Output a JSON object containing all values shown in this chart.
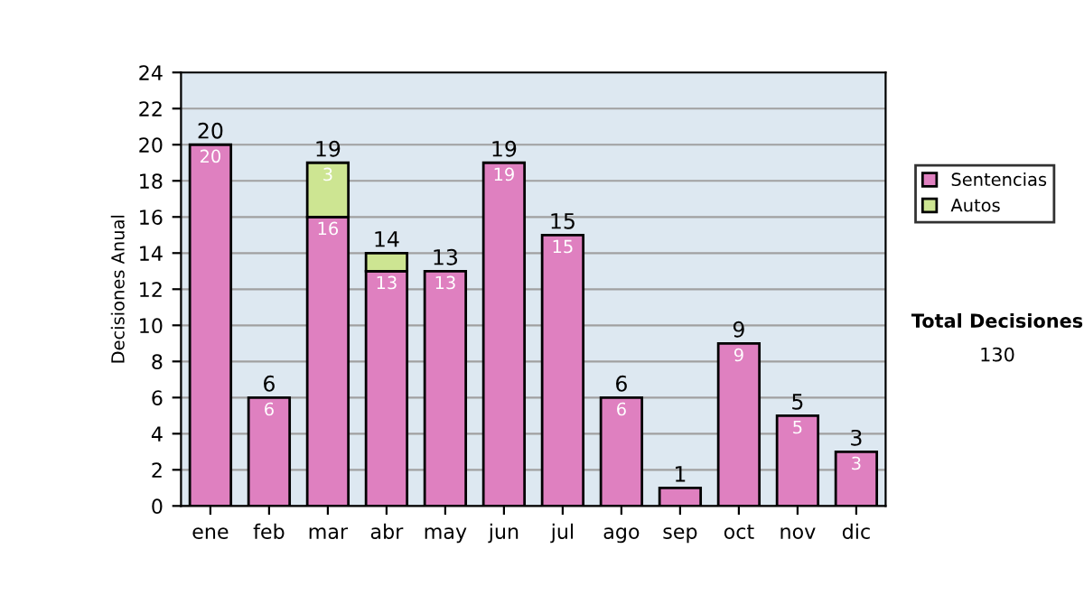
{
  "chart_data": {
    "type": "bar",
    "stacked": true,
    "ylabel": "Decisiones Anual",
    "categories": [
      "ene",
      "feb",
      "mar",
      "abr",
      "may",
      "jun",
      "jul",
      "ago",
      "sep",
      "oct",
      "nov",
      "dic"
    ],
    "series": [
      {
        "name": "Sentencias",
        "color": "#df80c0",
        "values": [
          20,
          6,
          16,
          13,
          13,
          19,
          15,
          6,
          1,
          9,
          5,
          3
        ],
        "value_labels": [
          "20",
          "6",
          "16",
          "13",
          "13",
          "19",
          "15",
          "6",
          null,
          "9",
          "5",
          "3"
        ]
      },
      {
        "name": "Autos",
        "color": "#cde592",
        "values": [
          null,
          null,
          3,
          1,
          null,
          null,
          null,
          null,
          null,
          null,
          null,
          null
        ],
        "value_labels": [
          null,
          null,
          "3",
          null,
          null,
          null,
          null,
          null,
          null,
          null,
          null,
          null
        ]
      }
    ],
    "totals": [
      "20",
      "6",
      "19",
      "14",
      "13",
      "19",
      "15",
      "6",
      "1",
      "9",
      "5",
      "3"
    ],
    "ylim": [
      0,
      24
    ],
    "yticks": [
      0,
      2,
      4,
      6,
      8,
      10,
      12,
      14,
      16,
      18,
      20,
      22,
      24
    ],
    "grid": "y",
    "legend": "right",
    "annotations": [
      "Total Decisiones",
      "130"
    ]
  }
}
